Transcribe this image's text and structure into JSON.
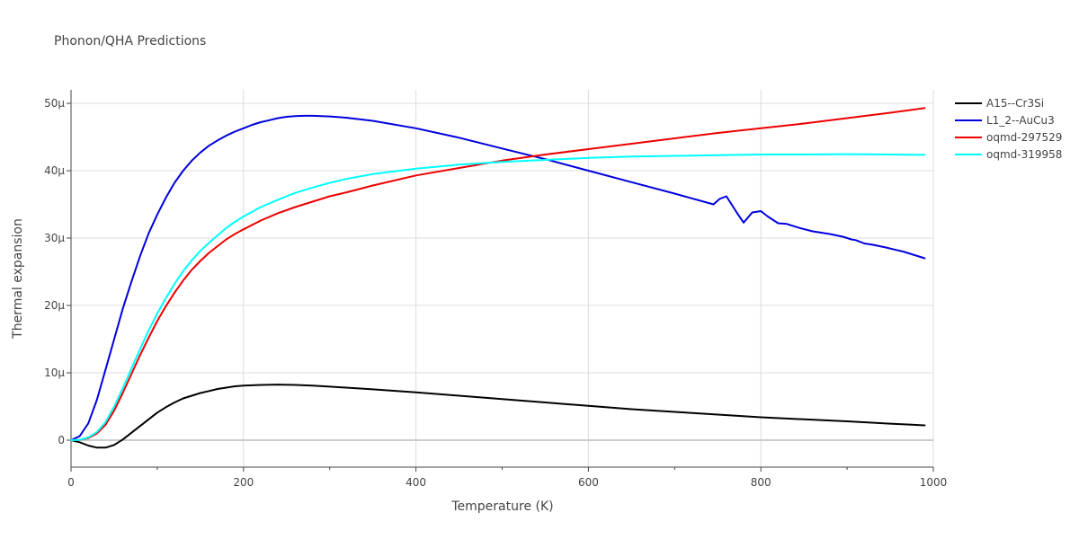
{
  "chart_data": {
    "type": "line",
    "title": "Phonon/QHA Predictions",
    "xlabel": "Temperature (K)",
    "ylabel": "Thermal expansion",
    "xlim": [
      0,
      1000
    ],
    "ylim": [
      -4,
      52
    ],
    "y_unit_suffix": "μ",
    "x_ticks": [
      0,
      200,
      400,
      600,
      800,
      1000
    ],
    "y_ticks": [
      0,
      10,
      20,
      30,
      40,
      50
    ],
    "x_tick_labels": [
      "0",
      "200",
      "400",
      "600",
      "800",
      "1000"
    ],
    "y_tick_labels": [
      "0",
      "10μ",
      "20μ",
      "30μ",
      "40μ",
      "50μ"
    ],
    "grid": true,
    "legend_position": "top-right",
    "series": [
      {
        "name": "A15--Cr3Si",
        "color": "#000000",
        "x": [
          0,
          10,
          20,
          30,
          40,
          50,
          60,
          70,
          80,
          90,
          100,
          110,
          120,
          130,
          140,
          150,
          160,
          170,
          180,
          190,
          200,
          220,
          240,
          260,
          280,
          300,
          350,
          400,
          450,
          500,
          550,
          600,
          650,
          700,
          750,
          800,
          850,
          900,
          950,
          990
        ],
        "values": [
          0,
          -0.3,
          -0.8,
          -1.1,
          -1.1,
          -0.7,
          0.1,
          1.1,
          2.1,
          3.1,
          4.1,
          4.9,
          5.6,
          6.2,
          6.6,
          7.0,
          7.3,
          7.6,
          7.8,
          8.0,
          8.1,
          8.2,
          8.25,
          8.2,
          8.1,
          7.95,
          7.55,
          7.1,
          6.6,
          6.1,
          5.6,
          5.1,
          4.6,
          4.2,
          3.8,
          3.4,
          3.1,
          2.8,
          2.45,
          2.2
        ]
      },
      {
        "name": "L1_2--AuCu3",
        "color": "#0000dd",
        "x": [
          0,
          10,
          20,
          30,
          40,
          50,
          60,
          70,
          80,
          90,
          100,
          110,
          120,
          130,
          140,
          150,
          160,
          170,
          180,
          190,
          200,
          210,
          220,
          230,
          240,
          250,
          260,
          270,
          280,
          300,
          320,
          350,
          400,
          450,
          500,
          550,
          600,
          650,
          700,
          745,
          752,
          760,
          766,
          772,
          780,
          790,
          800,
          808,
          820,
          830,
          845,
          860,
          880,
          895,
          905,
          910,
          920,
          930,
          945,
          955,
          965,
          980,
          990
        ],
        "values": [
          0,
          0.6,
          2.5,
          6.0,
          10.5,
          15.0,
          19.5,
          23.5,
          27.3,
          30.7,
          33.5,
          36.0,
          38.2,
          40.0,
          41.5,
          42.7,
          43.7,
          44.5,
          45.2,
          45.8,
          46.3,
          46.8,
          47.2,
          47.5,
          47.8,
          48.0,
          48.1,
          48.15,
          48.15,
          48.05,
          47.85,
          47.4,
          46.3,
          44.9,
          43.3,
          41.7,
          40.0,
          38.3,
          36.6,
          35.0,
          35.8,
          36.2,
          35.0,
          33.8,
          32.3,
          33.8,
          34.0,
          33.2,
          32.2,
          32.1,
          31.5,
          31.0,
          30.6,
          30.2,
          29.8,
          29.7,
          29.2,
          29.0,
          28.6,
          28.3,
          28.0,
          27.4,
          27.0
        ]
      },
      {
        "name": "oqmd-297529",
        "color": "#ee0000",
        "x": [
          0,
          10,
          20,
          30,
          40,
          50,
          60,
          70,
          80,
          90,
          100,
          110,
          120,
          130,
          140,
          150,
          160,
          170,
          180,
          190,
          200,
          220,
          240,
          260,
          280,
          300,
          320,
          350,
          400,
          450,
          500,
          550,
          600,
          650,
          700,
          750,
          800,
          850,
          900,
          950,
          990
        ],
        "values": [
          0,
          0.05,
          0.3,
          1.0,
          2.3,
          4.4,
          7.0,
          9.8,
          12.6,
          15.2,
          17.7,
          19.9,
          21.9,
          23.7,
          25.3,
          26.6,
          27.8,
          28.8,
          29.8,
          30.6,
          31.3,
          32.6,
          33.7,
          34.6,
          35.4,
          36.2,
          36.8,
          37.8,
          39.3,
          40.4,
          41.5,
          42.4,
          43.2,
          44.0,
          44.8,
          45.6,
          46.3,
          47.0,
          47.8,
          48.6,
          49.3
        ]
      },
      {
        "name": "oqmd-319958",
        "color": "#00ffff",
        "x": [
          0,
          10,
          20,
          30,
          40,
          50,
          60,
          70,
          80,
          90,
          100,
          110,
          120,
          130,
          140,
          150,
          160,
          170,
          180,
          190,
          200,
          220,
          240,
          260,
          280,
          300,
          320,
          350,
          400,
          450,
          500,
          550,
          600,
          650,
          700,
          750,
          800,
          850,
          900,
          950,
          990
        ],
        "values": [
          0,
          0.05,
          0.4,
          1.2,
          2.7,
          5.0,
          7.7,
          10.6,
          13.5,
          16.3,
          18.8,
          21.1,
          23.2,
          25.1,
          26.7,
          28.1,
          29.3,
          30.4,
          31.5,
          32.4,
          33.2,
          34.6,
          35.7,
          36.7,
          37.5,
          38.2,
          38.8,
          39.5,
          40.3,
          40.9,
          41.3,
          41.6,
          41.9,
          42.1,
          42.2,
          42.3,
          42.4,
          42.4,
          42.45,
          42.4,
          42.35
        ]
      }
    ]
  }
}
